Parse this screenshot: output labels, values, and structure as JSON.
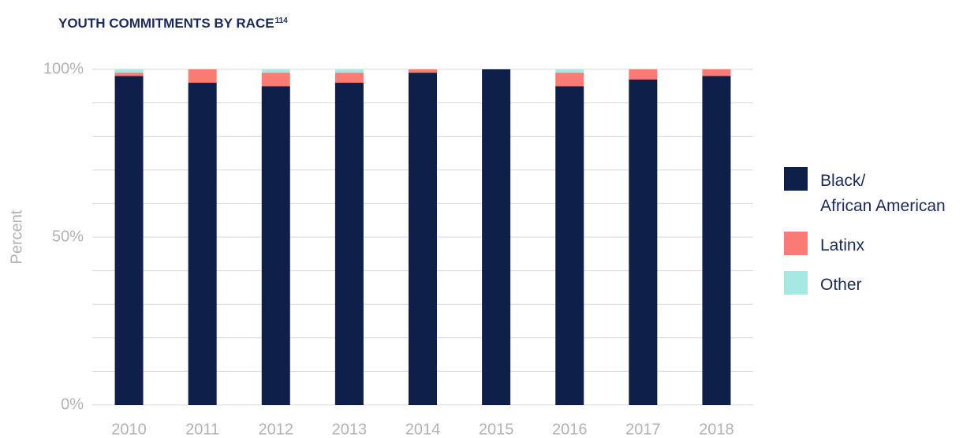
{
  "chart_data": {
    "type": "stacked_bar",
    "title": "YOUTH COMMITMENTS BY RACE",
    "title_superscript": "114",
    "y_label": "Percent",
    "categories": [
      "2010",
      "2011",
      "2012",
      "2013",
      "2014",
      "2015",
      "2016",
      "2017",
      "2018"
    ],
    "series": [
      {
        "name": "Black/\nAfrican American",
        "color": "#0e1f4a",
        "values": [
          98,
          96,
          95,
          96,
          99,
          100,
          95,
          97,
          98
        ]
      },
      {
        "name": "Latinx",
        "color": "#f97b73",
        "values": [
          1,
          4,
          4,
          3,
          1,
          0,
          4,
          3,
          2
        ]
      },
      {
        "name": "Other",
        "color": "#a6e9e2",
        "values": [
          1,
          0,
          1,
          1,
          0,
          0,
          1,
          0,
          0
        ]
      }
    ],
    "ylim": [
      0,
      100
    ],
    "yticks": [
      {
        "value": 0,
        "label": "0%"
      },
      {
        "value": 50,
        "label": "50%"
      },
      {
        "value": 100,
        "label": "100%"
      }
    ],
    "ygrid": [
      10,
      20,
      30,
      40,
      60,
      70,
      80,
      90
    ],
    "grid": true,
    "legend": "right"
  }
}
